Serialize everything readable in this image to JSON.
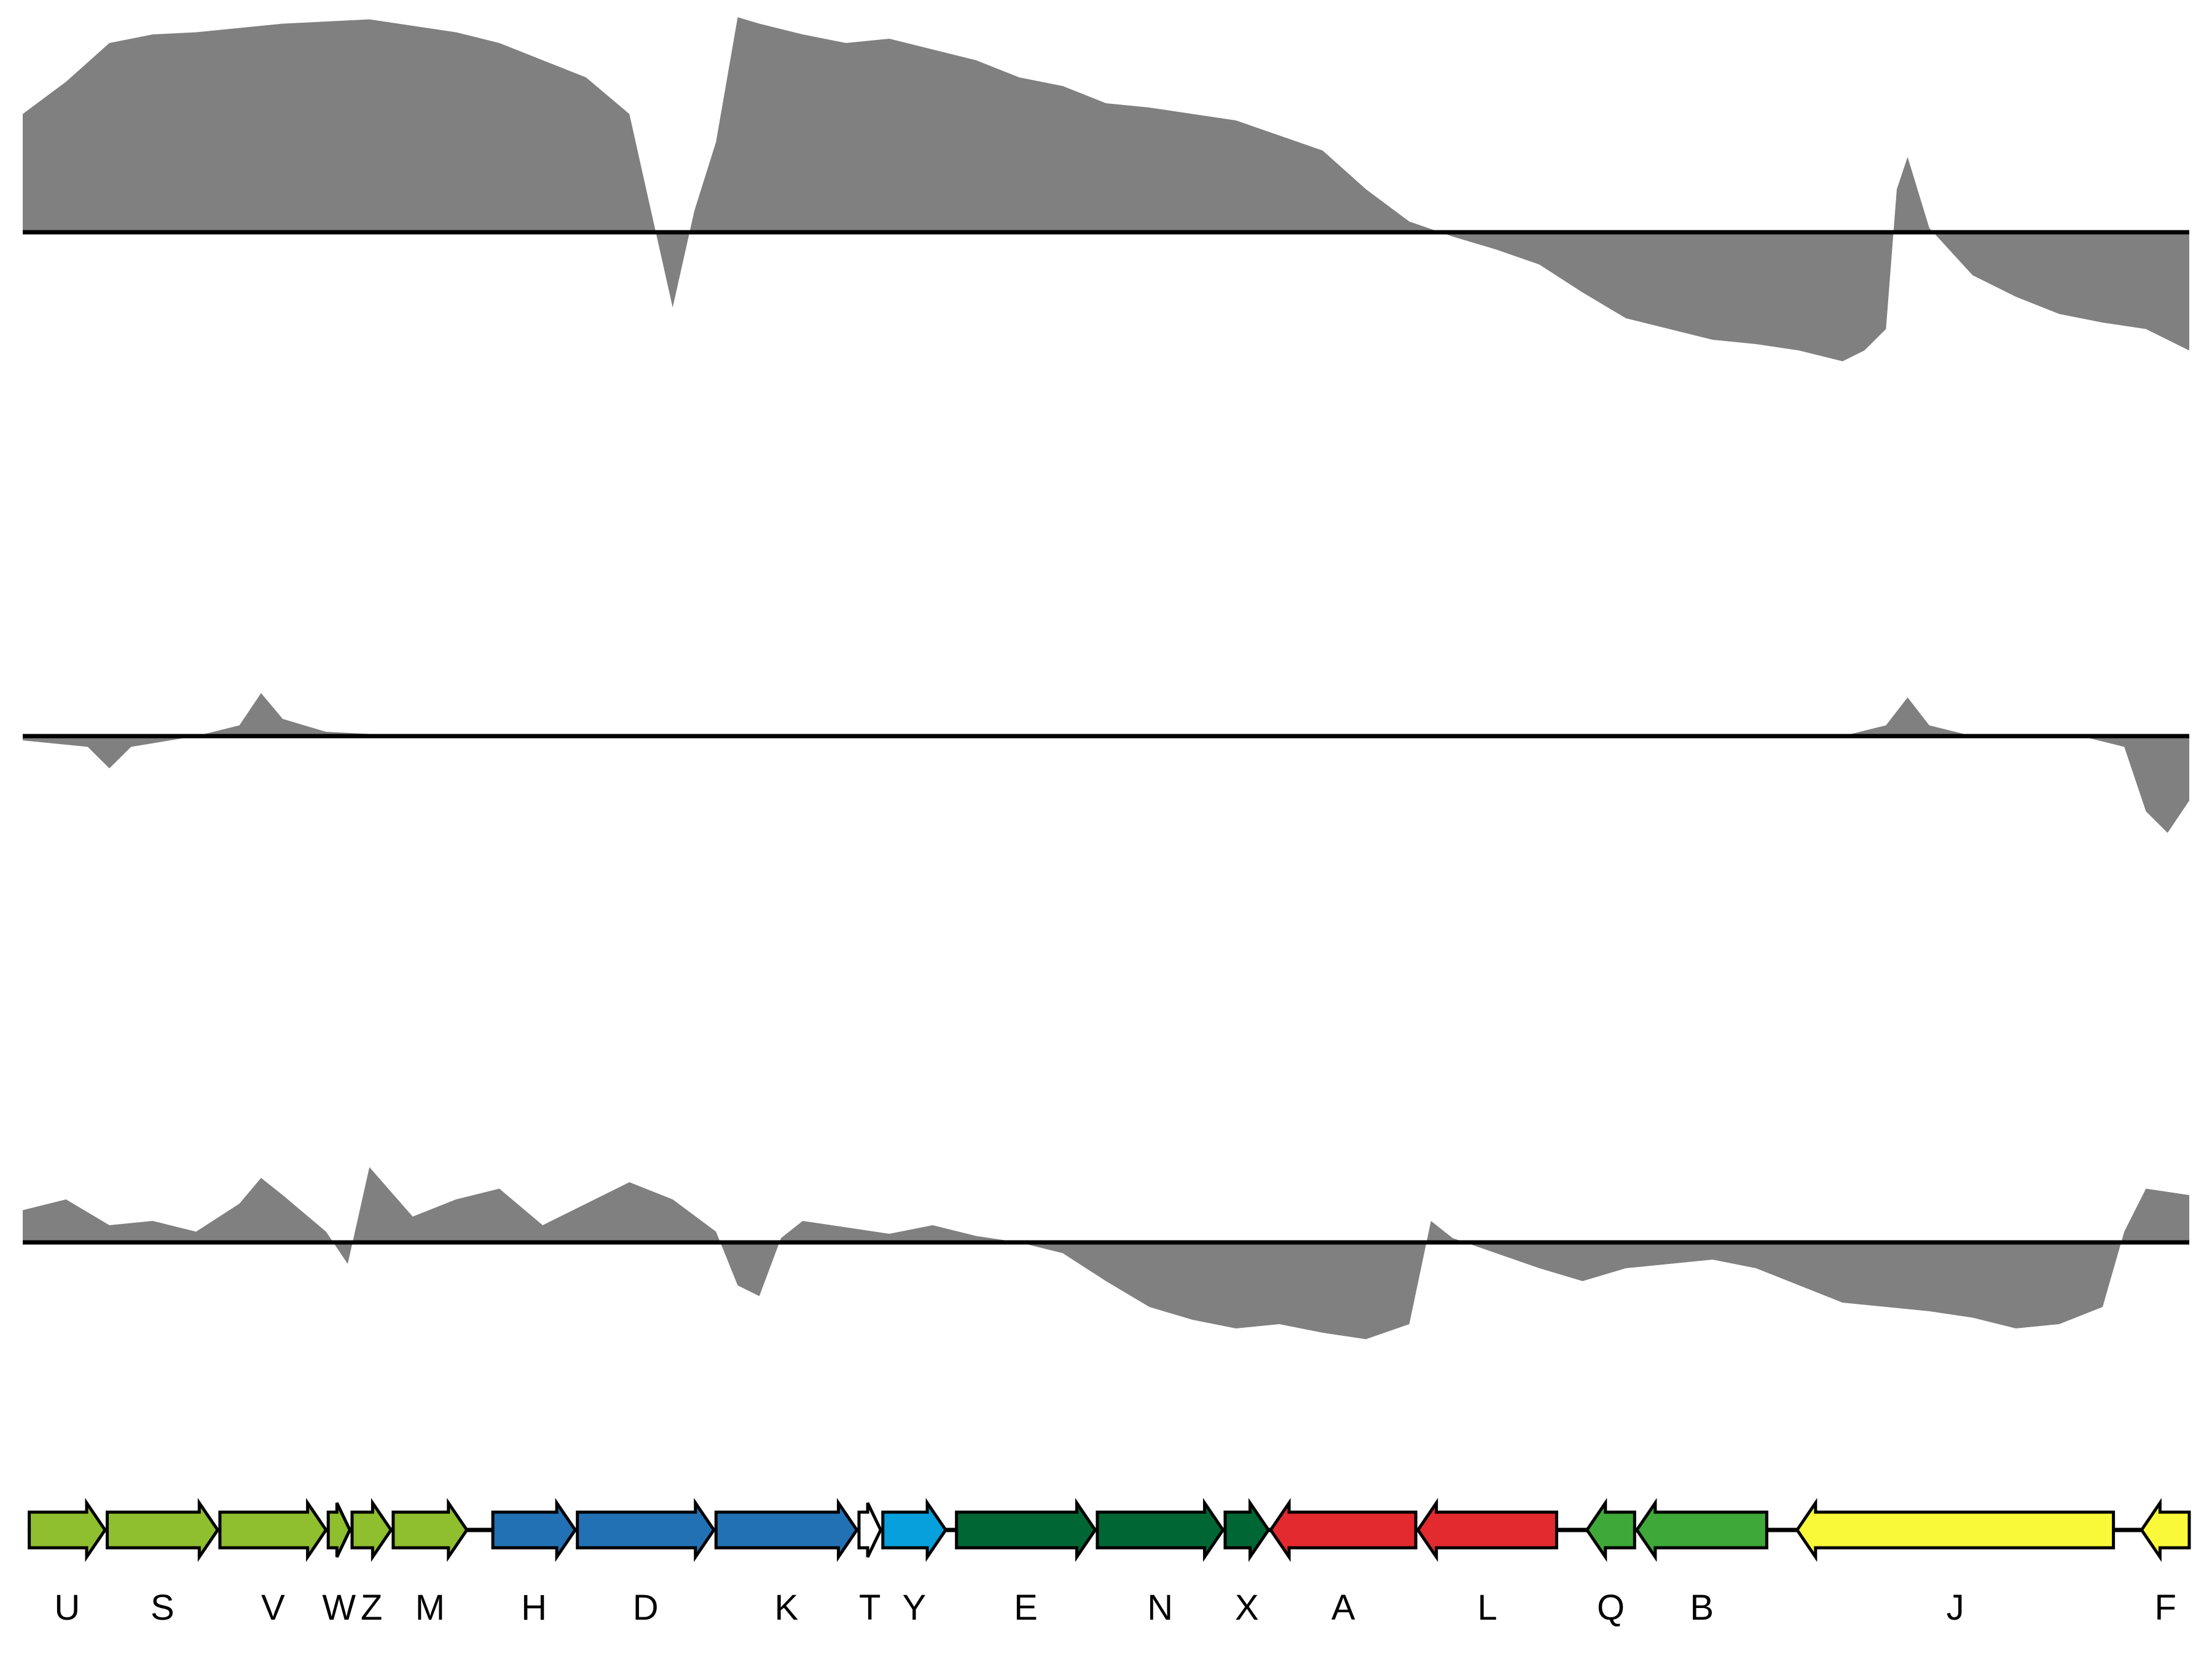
{
  "colors": {
    "track_fill": "#808080",
    "baseline": "#000000",
    "gene_lime": "#8fbe2e",
    "gene_blue": "#2271b5",
    "gene_white": "#ffffff",
    "gene_cyan": "#079fdc",
    "gene_darkgreen": "#006634",
    "gene_red": "#e32a2f",
    "gene_green": "#3ea838",
    "gene_yellow": "#f9f93a"
  },
  "tracks": [
    {
      "id": "track-1",
      "points": [
        [
          0,
          0.55
        ],
        [
          2,
          0.7
        ],
        [
          4,
          0.88
        ],
        [
          6,
          0.92
        ],
        [
          8,
          0.93
        ],
        [
          10,
          0.95
        ],
        [
          12,
          0.97
        ],
        [
          14,
          0.98
        ],
        [
          16,
          0.99
        ],
        [
          18,
          0.96
        ],
        [
          20,
          0.93
        ],
        [
          22,
          0.88
        ],
        [
          24,
          0.8
        ],
        [
          26,
          0.72
        ],
        [
          28,
          0.55
        ],
        [
          29,
          0.1
        ],
        [
          30,
          -0.35
        ],
        [
          31,
          0.1
        ],
        [
          32,
          0.42
        ],
        [
          33,
          1.0
        ],
        [
          34,
          0.97
        ],
        [
          36,
          0.92
        ],
        [
          38,
          0.88
        ],
        [
          40,
          0.9
        ],
        [
          42,
          0.85
        ],
        [
          44,
          0.8
        ],
        [
          46,
          0.72
        ],
        [
          48,
          0.68
        ],
        [
          50,
          0.6
        ],
        [
          52,
          0.58
        ],
        [
          54,
          0.55
        ],
        [
          56,
          0.52
        ],
        [
          58,
          0.45
        ],
        [
          60,
          0.38
        ],
        [
          62,
          0.2
        ],
        [
          64,
          0.05
        ],
        [
          66,
          -0.02
        ],
        [
          68,
          -0.08
        ],
        [
          70,
          -0.15
        ],
        [
          72,
          -0.28
        ],
        [
          74,
          -0.4
        ],
        [
          76,
          -0.45
        ],
        [
          78,
          -0.5
        ],
        [
          80,
          -0.52
        ],
        [
          82,
          -0.55
        ],
        [
          84,
          -0.6
        ],
        [
          85,
          -0.55
        ],
        [
          86,
          -0.45
        ],
        [
          86.5,
          0.2
        ],
        [
          87,
          0.35
        ],
        [
          88,
          0.02
        ],
        [
          90,
          -0.2
        ],
        [
          92,
          -0.3
        ],
        [
          94,
          -0.38
        ],
        [
          96,
          -0.42
        ],
        [
          98,
          -0.45
        ],
        [
          100,
          -0.55
        ]
      ]
    },
    {
      "id": "track-2",
      "points": [
        [
          0,
          -0.02
        ],
        [
          3,
          -0.05
        ],
        [
          4,
          -0.15
        ],
        [
          5,
          -0.05
        ],
        [
          8,
          0.0
        ],
        [
          10,
          0.05
        ],
        [
          11,
          0.2
        ],
        [
          12,
          0.08
        ],
        [
          14,
          0.02
        ],
        [
          18,
          0.0
        ],
        [
          22,
          0.0
        ],
        [
          26,
          0.0
        ],
        [
          30,
          0.0
        ],
        [
          40,
          0.0
        ],
        [
          50,
          0.0
        ],
        [
          60,
          0.0
        ],
        [
          70,
          0.0
        ],
        [
          80,
          0.0
        ],
        [
          84,
          0.0
        ],
        [
          86,
          0.05
        ],
        [
          87,
          0.18
        ],
        [
          88,
          0.05
        ],
        [
          90,
          0.0
        ],
        [
          95,
          0.0
        ],
        [
          97,
          -0.05
        ],
        [
          98,
          -0.35
        ],
        [
          99,
          -0.45
        ],
        [
          100,
          -0.3
        ]
      ]
    },
    {
      "id": "track-3",
      "points": [
        [
          0,
          0.15
        ],
        [
          2,
          0.2
        ],
        [
          4,
          0.08
        ],
        [
          6,
          0.1
        ],
        [
          8,
          0.05
        ],
        [
          10,
          0.18
        ],
        [
          11,
          0.3
        ],
        [
          12,
          0.22
        ],
        [
          14,
          0.05
        ],
        [
          15,
          -0.1
        ],
        [
          16,
          0.35
        ],
        [
          18,
          0.12
        ],
        [
          20,
          0.2
        ],
        [
          22,
          0.25
        ],
        [
          24,
          0.08
        ],
        [
          26,
          0.18
        ],
        [
          28,
          0.28
        ],
        [
          30,
          0.2
        ],
        [
          32,
          0.05
        ],
        [
          33,
          -0.2
        ],
        [
          34,
          -0.25
        ],
        [
          35,
          0.02
        ],
        [
          36,
          0.1
        ],
        [
          40,
          0.04
        ],
        [
          42,
          0.08
        ],
        [
          44,
          0.03
        ],
        [
          46,
          0.0
        ],
        [
          48,
          -0.05
        ],
        [
          50,
          -0.18
        ],
        [
          52,
          -0.3
        ],
        [
          54,
          -0.36
        ],
        [
          56,
          -0.4
        ],
        [
          58,
          -0.38
        ],
        [
          60,
          -0.42
        ],
        [
          62,
          -0.45
        ],
        [
          64,
          -0.38
        ],
        [
          65,
          0.1
        ],
        [
          66,
          0.02
        ],
        [
          68,
          -0.05
        ],
        [
          70,
          -0.12
        ],
        [
          72,
          -0.18
        ],
        [
          74,
          -0.12
        ],
        [
          76,
          -0.1
        ],
        [
          78,
          -0.08
        ],
        [
          80,
          -0.12
        ],
        [
          82,
          -0.2
        ],
        [
          84,
          -0.28
        ],
        [
          86,
          -0.3
        ],
        [
          88,
          -0.32
        ],
        [
          90,
          -0.35
        ],
        [
          92,
          -0.4
        ],
        [
          94,
          -0.38
        ],
        [
          96,
          -0.3
        ],
        [
          97,
          0.05
        ],
        [
          98,
          0.25
        ],
        [
          100,
          0.22
        ]
      ]
    }
  ],
  "genes": [
    {
      "label": "U",
      "start": 0.3,
      "end": 3.8,
      "dir": "right",
      "color": "#8fbe2e"
    },
    {
      "label": "S",
      "start": 3.9,
      "end": 9.0,
      "dir": "right",
      "color": "#8fbe2e"
    },
    {
      "label": "V",
      "start": 9.1,
      "end": 14.0,
      "dir": "right",
      "color": "#8fbe2e"
    },
    {
      "label": "W",
      "start": 14.1,
      "end": 15.1,
      "dir": "right",
      "color": "#8fbe2e"
    },
    {
      "label": "Z",
      "start": 15.2,
      "end": 17.0,
      "dir": "right",
      "color": "#8fbe2e"
    },
    {
      "label": "M",
      "start": 17.1,
      "end": 20.5,
      "dir": "right",
      "color": "#8fbe2e"
    },
    {
      "label": "H",
      "start": 21.7,
      "end": 25.5,
      "dir": "right",
      "color": "#2271b5"
    },
    {
      "label": "D",
      "start": 25.6,
      "end": 31.9,
      "dir": "right",
      "color": "#2271b5"
    },
    {
      "label": "K",
      "start": 32.0,
      "end": 38.5,
      "dir": "right",
      "color": "#2271b5"
    },
    {
      "label": "T",
      "start": 38.6,
      "end": 39.6,
      "dir": "right",
      "color": "#ffffff"
    },
    {
      "label": "Y",
      "start": 39.7,
      "end": 42.6,
      "dir": "right",
      "color": "#079fdc"
    },
    {
      "label": "E",
      "start": 43.1,
      "end": 49.5,
      "dir": "right",
      "color": "#006634"
    },
    {
      "label": "N",
      "start": 49.6,
      "end": 55.4,
      "dir": "right",
      "color": "#006634"
    },
    {
      "label": "X",
      "start": 55.5,
      "end": 57.5,
      "dir": "right",
      "color": "#006634"
    },
    {
      "label": "A",
      "start": 57.6,
      "end": 64.3,
      "dir": "left",
      "color": "#e32a2f"
    },
    {
      "label": "L",
      "start": 64.4,
      "end": 70.8,
      "dir": "left",
      "color": "#e32a2f"
    },
    {
      "label": "Q",
      "start": 72.2,
      "end": 74.4,
      "dir": "left",
      "color": "#3ea838"
    },
    {
      "label": "B",
      "start": 74.5,
      "end": 80.5,
      "dir": "left",
      "color": "#3ea838"
    },
    {
      "label": "J",
      "start": 81.9,
      "end": 96.5,
      "dir": "left",
      "color": "#f9f93a"
    },
    {
      "label": "F",
      "start": 97.8,
      "end": 100.0,
      "dir": "left",
      "color": "#f9f93a"
    }
  ]
}
